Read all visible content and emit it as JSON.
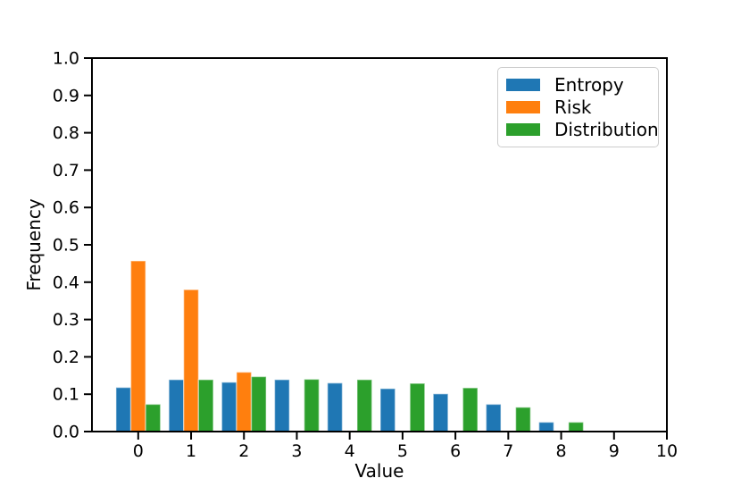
{
  "figure": {
    "background": "#ffffff",
    "text_color": "#000000",
    "spine_color": "#000000",
    "legend_border_color": "#cccccc"
  },
  "chart_data": {
    "type": "bar",
    "title": "",
    "xlabel": "Value",
    "ylabel": "Frequency",
    "x": [
      0,
      1,
      2,
      3,
      4,
      5,
      6,
      7,
      8,
      9
    ],
    "series": [
      {
        "name": "Entropy",
        "color": "#1f77b4",
        "values": [
          0.118,
          0.139,
          0.132,
          0.139,
          0.13,
          0.115,
          0.101,
          0.073,
          0.025,
          0
        ]
      },
      {
        "name": "Risk",
        "color": "#ff7f0e",
        "values": [
          0.457,
          0.38,
          0.159,
          0,
          0,
          0,
          0,
          0,
          0,
          0
        ]
      },
      {
        "name": "Distribution",
        "color": "#2ca02c",
        "values": [
          0.073,
          0.139,
          0.147,
          0.14,
          0.139,
          0.129,
          0.117,
          0.065,
          0.025,
          0
        ]
      }
    ],
    "bar_width": 0.28,
    "xlim": [
      -0.875,
      10
    ],
    "ylim": [
      0,
      1
    ],
    "x_tick_labels": [
      "0",
      "1",
      "2",
      "3",
      "4",
      "5",
      "6",
      "7",
      "8",
      "9",
      "10"
    ],
    "x_tick_values": [
      0,
      1,
      2,
      3,
      4,
      5,
      6,
      7,
      8,
      9,
      10
    ],
    "y_tick_labels": [
      "0.0",
      "0.1",
      "0.2",
      "0.3",
      "0.4",
      "0.5",
      "0.6",
      "0.7",
      "0.8",
      "0.9",
      "1.0"
    ],
    "y_tick_values": [
      0,
      0.1,
      0.2,
      0.3,
      0.4,
      0.5,
      0.6,
      0.7,
      0.8,
      0.9,
      1.0
    ],
    "grid": false,
    "legend_position": "upper right"
  }
}
